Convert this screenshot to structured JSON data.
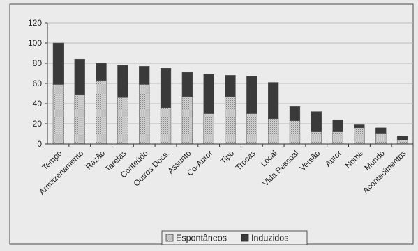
{
  "chart_data": {
    "type": "bar",
    "stacked": true,
    "title": "",
    "xlabel": "",
    "ylabel": "",
    "ylim": [
      0,
      120
    ],
    "yticks": [
      0,
      20,
      40,
      60,
      80,
      100,
      120
    ],
    "grid": true,
    "legend_position": "bottom",
    "categories": [
      "Tempo",
      "Armazenamento",
      "Razão",
      "Tarefas",
      "Conteúdo",
      "Outros Docs.",
      "Assunto",
      "Co-Autor",
      "Tipo",
      "Trocas",
      "Local",
      "Vida Pessoal",
      "Versão",
      "Autor",
      "Nome",
      "Mundo",
      "Acontecimentos"
    ],
    "series": [
      {
        "name": "Espontâneos",
        "color": "#c4c4c4",
        "values": [
          59,
          49,
          63,
          46,
          59,
          36,
          47,
          30,
          47,
          30,
          25,
          23,
          12,
          12,
          16,
          10,
          4
        ]
      },
      {
        "name": "Induzidos",
        "color": "#3a3a3a",
        "values": [
          41,
          35,
          17,
          32,
          18,
          39,
          24,
          39,
          21,
          37,
          36,
          14,
          20,
          12,
          3,
          6,
          4
        ]
      }
    ]
  }
}
